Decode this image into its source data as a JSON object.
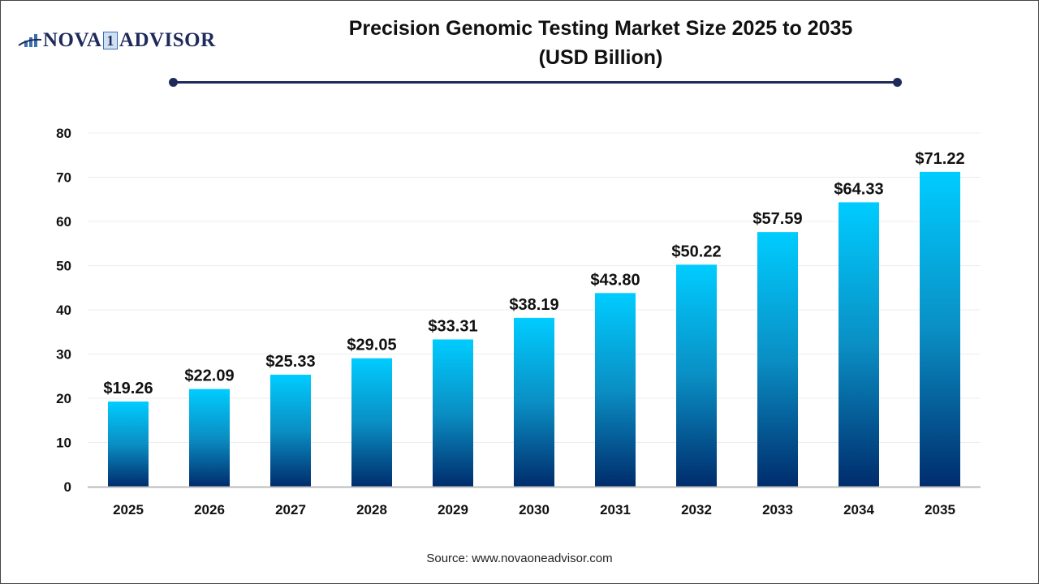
{
  "logo": {
    "text_left": "NOVA",
    "text_mid": "1",
    "text_right": "ADVISOR"
  },
  "title_line1": "Precision Genomic Testing Market Size 2025 to 2035",
  "title_line2": "(USD Billion)",
  "source": "Source: www.novaoneadvisor.com",
  "chart_data": {
    "type": "bar",
    "title": "Precision Genomic Testing Market Size 2025 to 2035 (USD Billion)",
    "categories": [
      "2025",
      "2026",
      "2027",
      "2028",
      "2029",
      "2030",
      "2031",
      "2032",
      "2033",
      "2034",
      "2035"
    ],
    "values": [
      19.26,
      22.09,
      25.33,
      29.05,
      33.31,
      38.19,
      43.8,
      50.22,
      57.59,
      64.33,
      71.22
    ],
    "data_labels": [
      "$19.26",
      "$22.09",
      "$25.33",
      "$29.05",
      "$33.31",
      "$38.19",
      "$43.80",
      "$50.22",
      "$57.59",
      "$64.33",
      "$71.22"
    ],
    "ylim": [
      0,
      80
    ],
    "yticks": [
      0,
      10,
      20,
      30,
      40,
      50,
      60,
      70,
      80
    ],
    "grid": true,
    "bar_gradient": {
      "top": "#00CCFF",
      "middle": "#0A8FC4",
      "bottom": "#002C6C"
    }
  }
}
